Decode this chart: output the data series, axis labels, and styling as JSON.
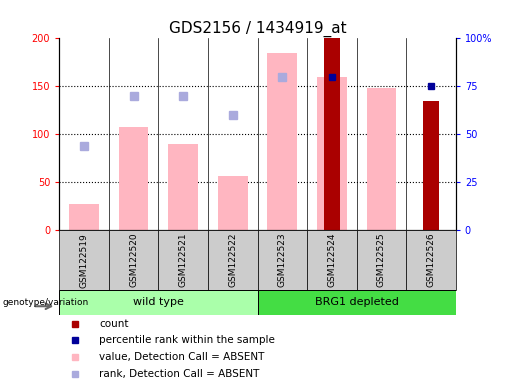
{
  "title": "GDS2156 / 1434919_at",
  "samples": [
    "GSM122519",
    "GSM122520",
    "GSM122521",
    "GSM122522",
    "GSM122523",
    "GSM122524",
    "GSM122525",
    "GSM122526"
  ],
  "count_values": [
    0,
    0,
    0,
    0,
    0,
    200,
    0,
    135
  ],
  "pink_bar_values": [
    28,
    108,
    90,
    57,
    185,
    160,
    148,
    0
  ],
  "blue_square_values": [
    null,
    null,
    null,
    null,
    null,
    160,
    null,
    150
  ],
  "lightblue_square_values": [
    88,
    140,
    140,
    120,
    160,
    null,
    null,
    null
  ],
  "ylim_left": [
    0,
    200
  ],
  "ylim_right": [
    0,
    100
  ],
  "yticks_left": [
    0,
    50,
    100,
    150,
    200
  ],
  "yticks_right": [
    0,
    25,
    50,
    75,
    100
  ],
  "ytick_labels_left": [
    "0",
    "50",
    "100",
    "150",
    "200"
  ],
  "ytick_labels_right": [
    "0",
    "25",
    "50",
    "75",
    "100%"
  ],
  "count_color": "#AA0000",
  "pink_color": "#FFB6C1",
  "blue_color": "#000099",
  "lightblue_color": "#AAAADD",
  "wild_type_color": "#AAFFAA",
  "brg1_color": "#44DD44",
  "sample_bg_color": "#CCCCCC",
  "title_fontsize": 11,
  "tick_fontsize": 7,
  "legend_fontsize": 7.5
}
